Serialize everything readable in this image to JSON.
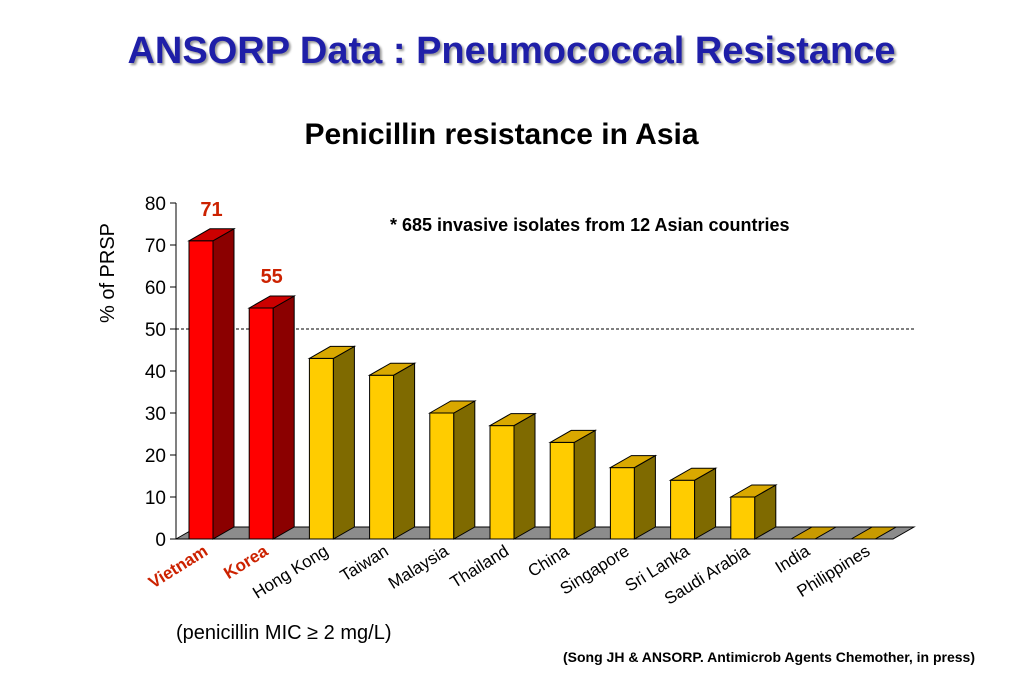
{
  "title": "ANSORP Data : Pneumococcal Resistance",
  "footnote": "(penicillin MIC ≥ 2 mg/L)",
  "citation": "(Song JH & ANSORP.  Antimicrob Agents Chemother, in press)",
  "colors": {
    "title": "#1f1fa8",
    "highlight_bar": "#ff0000",
    "highlight_label": "#cc2200",
    "normal_bar": "#ffcc00",
    "floor": "#8c8c8c"
  },
  "chart_data": {
    "type": "bar",
    "title": "Penicillin resistance in Asia",
    "ylabel": "% of PRSP",
    "xlabel": "",
    "ylim": [
      0,
      80
    ],
    "yticks": [
      0,
      10,
      20,
      30,
      40,
      50,
      60,
      70,
      80
    ],
    "reference_line": 50,
    "annotation": "* 685 invasive isolates from 12 Asian countries",
    "categories": [
      "Vietnam",
      "Korea",
      "Hong Kong",
      "Taiwan",
      "Malaysia",
      "Thailand",
      "China",
      "Singapore",
      "Sri Lanka",
      "Saudi Arabia",
      "India",
      "Philippines"
    ],
    "values": [
      71,
      55,
      43,
      39,
      30,
      27,
      23,
      17,
      14,
      10,
      0,
      0
    ],
    "highlighted": [
      "Vietnam",
      "Korea"
    ],
    "data_labels": [
      {
        "category": "Vietnam",
        "text": "71"
      },
      {
        "category": "Korea",
        "text": "55"
      }
    ]
  }
}
